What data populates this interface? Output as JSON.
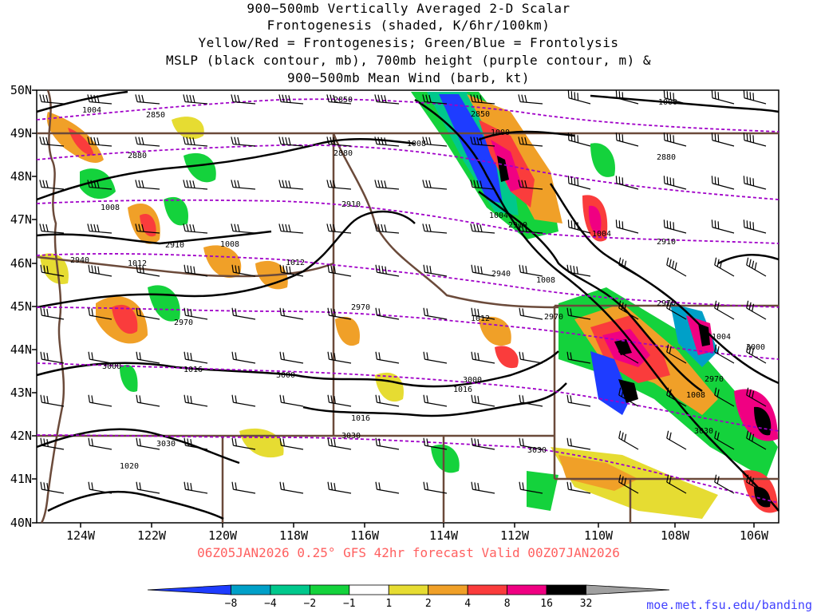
{
  "title_lines": [
    "900−500mb Vertically Averaged 2-D Scalar",
    "Frontogenesis (shaded, K/6hr/100km)",
    "Yellow/Red = Frontogenesis;  Green/Blue = Frontolysis",
    "MSLP (black contour, mb), 700mb height (purple contour, m) &",
    "900−500mb Mean Wind (barb, kt)"
  ],
  "lat_labels": [
    "50N",
    "49N",
    "48N",
    "47N",
    "46N",
    "45N",
    "44N",
    "43N",
    "42N",
    "41N",
    "40N"
  ],
  "lon_labels": [
    "124W",
    "122W",
    "120W",
    "118W",
    "116W",
    "114W",
    "112W",
    "110W",
    "108W",
    "106W"
  ],
  "footer": "06Z05JAN2026 0.25° GFS 42hr forecast Valid 00Z07JAN2026",
  "credit": "moe.met.fsu.edu/banding",
  "colorbar": {
    "labels": [
      "−8",
      "−4",
      "−2",
      "−1",
      "1",
      "2",
      "4",
      "8",
      "16",
      "32"
    ],
    "colors": [
      "#1e3cff",
      "#00a0c8",
      "#00c88c",
      "#14d23c",
      "#ffffff",
      "#e6dc32",
      "#f0a028",
      "#fa3c3c",
      "#f00082",
      "#000000",
      "#a0a0a0"
    ]
  },
  "isobar_labels": [
    "1004",
    "1000",
    "1008",
    "1008",
    "1012",
    "1012",
    "1004",
    "1008",
    "1004",
    "1008",
    "1012",
    "1016",
    "1016",
    "1016",
    "1020",
    "1000",
    "1004",
    "1008"
  ],
  "height_labels": [
    "2850",
    "2850",
    "2850",
    "2880",
    "2880",
    "2880",
    "2910",
    "2910",
    "2910",
    "2910",
    "2940",
    "2940",
    "2970",
    "2970",
    "2970",
    "2970",
    "2970",
    "3000",
    "3000",
    "3000",
    "3000",
    "3030",
    "3030",
    "3030",
    "3030"
  ],
  "colors": {
    "isobar": "#000000",
    "height_contour": "#a000c8",
    "border": "#6b4a3a",
    "barb": "#000000"
  }
}
